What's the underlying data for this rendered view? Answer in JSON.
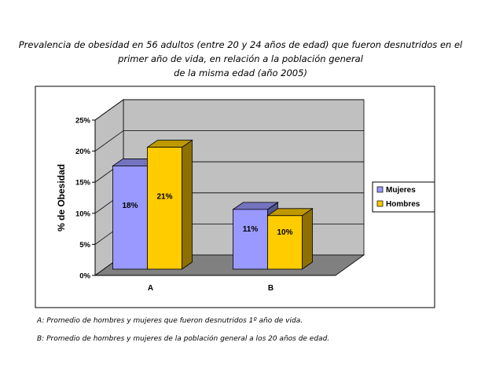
{
  "title_lines": [
    "Prevalencia de obesidad en 56 adultos (entre 20 y 24 años de edad) que fueron desnutridos en el",
    "primer año de vida, en relación a la población general",
    "de la misma edad (año 2005)"
  ],
  "chart_data": {
    "type": "bar",
    "categories": [
      "A",
      "B"
    ],
    "series": [
      {
        "name": "Mujeres",
        "values": [
          18,
          11
        ],
        "labels": [
          "18%",
          "11%"
        ]
      },
      {
        "name": "Hombres",
        "values": [
          21,
          10
        ],
        "labels": [
          "21%",
          "10%"
        ]
      }
    ],
    "ylabel": "% de Obesidad",
    "ylim": [
      0,
      25
    ],
    "yticks": [
      "0%",
      "5%",
      "10%",
      "15%",
      "20%",
      "25%"
    ],
    "grid": true,
    "legend_position": "right",
    "style": "3d-clustered"
  },
  "colors": {
    "mujeres": "#9999ff",
    "hombres": "#ffcc00",
    "wall": "#c0c0c0",
    "floor": "#808080"
  },
  "notes": [
    "A:  Promedio de hombres y mujeres que fueron desnutridos 1º año de vida.",
    "B: Promedio de hombres y mujeres de la población general a los 20 años de edad."
  ]
}
